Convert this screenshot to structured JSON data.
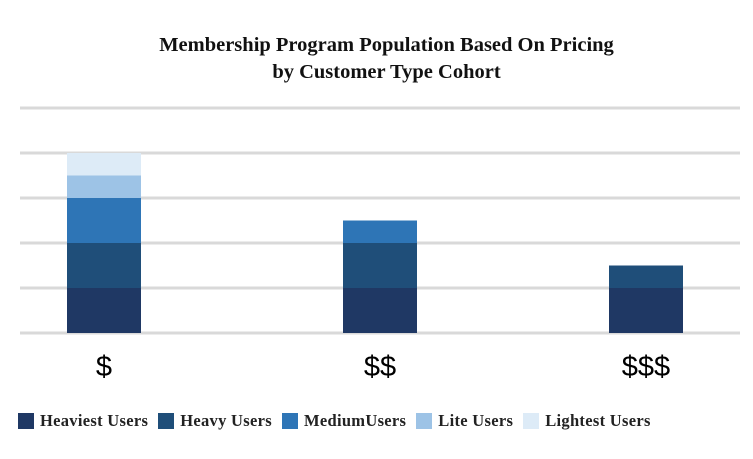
{
  "chart_data": {
    "type": "bar",
    "stacked": true,
    "title": "Membership Program Population Based On Pricing",
    "subtitle": "by Customer Type Cohort",
    "categories": [
      "$",
      "$$",
      "$$$"
    ],
    "series": [
      {
        "name": "Heaviest Users",
        "values": [
          1,
          1,
          1
        ],
        "color": "#1f3864"
      },
      {
        "name": "Heavy Users",
        "values": [
          1,
          1,
          0.5
        ],
        "color": "#1f4e79"
      },
      {
        "name": "MediumUsers",
        "values": [
          1,
          0.5,
          0
        ],
        "color": "#2e75b6"
      },
      {
        "name": "Lite Users",
        "values": [
          0.5,
          0,
          0
        ],
        "color": "#9dc3e6"
      },
      {
        "name": "Lightest Users",
        "values": [
          0.5,
          0,
          0
        ],
        "color": "#ddebf7"
      }
    ],
    "ylim": [
      0,
      5
    ],
    "grid": true,
    "legend_position": "bottom"
  }
}
